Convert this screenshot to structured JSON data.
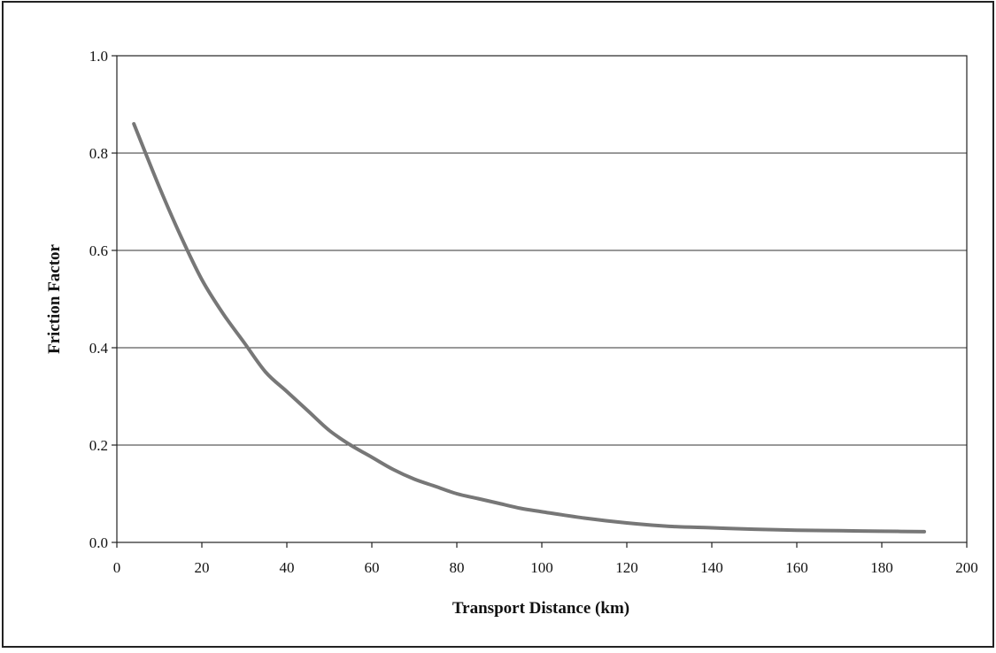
{
  "chart_data": {
    "type": "line",
    "title": "",
    "xlabel": "Transport Distance (km)",
    "ylabel": "Friction Factor",
    "xlim": [
      0,
      200
    ],
    "ylim": [
      0,
      1.0
    ],
    "x_ticks": [
      "0",
      "20",
      "40",
      "60",
      "80",
      "100",
      "120",
      "140",
      "160",
      "180",
      "200"
    ],
    "y_ticks": [
      "0.0",
      "0.2",
      "0.4",
      "0.6",
      "0.8",
      "1.0"
    ],
    "grid": "horizontal",
    "legend": "none",
    "series": [
      {
        "color": "#777777",
        "x": [
          4,
          10,
          15,
          20,
          25,
          30,
          35,
          40,
          45,
          50,
          55,
          60,
          65,
          70,
          75,
          80,
          85,
          90,
          95,
          100,
          110,
          120,
          130,
          140,
          150,
          160,
          170,
          180,
          190
        ],
        "y": [
          0.86,
          0.73,
          0.63,
          0.54,
          0.47,
          0.41,
          0.35,
          0.31,
          0.27,
          0.23,
          0.2,
          0.175,
          0.15,
          0.13,
          0.115,
          0.1,
          0.09,
          0.08,
          0.07,
          0.063,
          0.05,
          0.04,
          0.033,
          0.03,
          0.027,
          0.025,
          0.024,
          0.023,
          0.022
        ]
      }
    ]
  }
}
